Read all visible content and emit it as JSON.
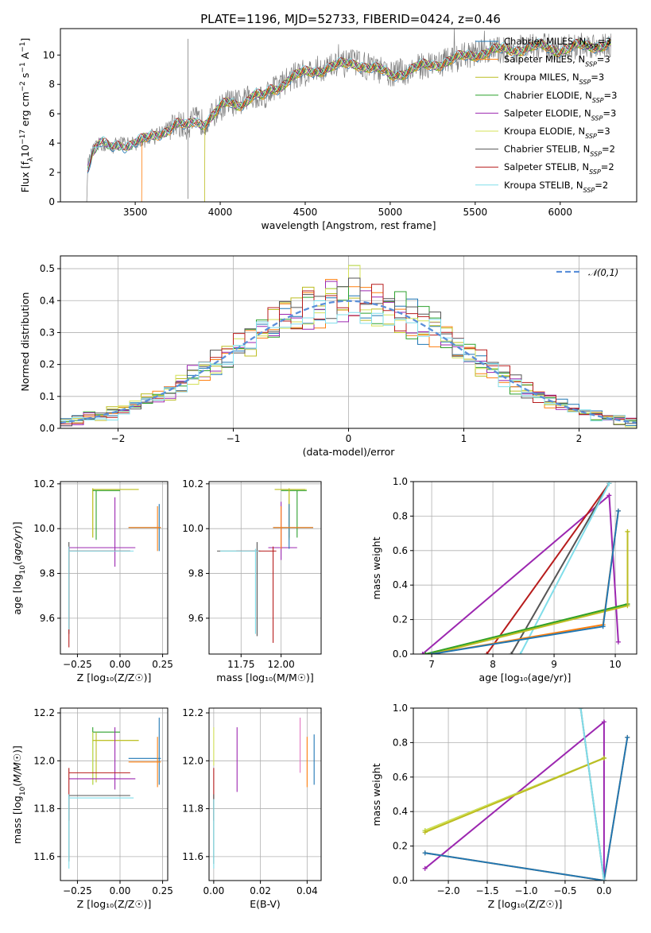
{
  "figure_title": "PLATE=1196, MJD=52733, FIBERID=0424, z=0.46",
  "colors": {
    "chabrier_miles": "#1f77b4",
    "salpeter_miles": "#ff7f0e",
    "kroupa_miles": "#bcbd22",
    "chabrier_elodie": "#2ca02c",
    "salpeter_elodie": "#9c27b0",
    "kroupa_elodie": "#d4e157",
    "chabrier_stelib": "#555555",
    "salpeter_stelib": "#b71c1c",
    "kroupa_stelib": "#80deea",
    "data": "#808080",
    "normal": "#5b8fd9"
  },
  "chart_data": [
    {
      "id": "spectrum",
      "type": "line",
      "title": "PLATE=1196, MJD=52733, FIBERID=0424, z=0.46",
      "xlabel": "wavelength [Angstrom, rest frame]",
      "ylabel": "Flux [f_λ10⁻¹⁷ erg cm⁻² s⁻¹ A⁻¹]",
      "xlim": [
        3060,
        6450
      ],
      "ylim": [
        0,
        11.8
      ],
      "xticks": [
        "3500",
        "4000",
        "4500",
        "5000",
        "5500",
        "6000"
      ],
      "yticks": [
        "0",
        "2",
        "4",
        "6",
        "8",
        "10"
      ],
      "legend_position": "top-right",
      "legend": [
        "Chabrier MILES, N_SSP=3",
        "Salpeter MILES, N_SSP=3",
        "Kroupa MILES, N_SSP=3",
        "Chabrier ELODIE, N_SSP=3",
        "Salpeter ELODIE, N_SSP=3",
        "Kroupa ELODIE, N_SSP=3",
        "Chabrier STELIB, N_SSP=2",
        "Salpeter STELIB, N_SSP=2",
        "Kroupa STELIB, N_SSP=2"
      ],
      "continuum": {
        "x": [
          3220,
          3250,
          3300,
          3350,
          3400,
          3450,
          3500,
          3550,
          3600,
          3650,
          3700,
          3750,
          3800,
          3850,
          3900,
          3950,
          4000,
          4050,
          4100,
          4150,
          4200,
          4250,
          4300,
          4350,
          4400,
          4450,
          4500,
          4600,
          4700,
          4800,
          4900,
          5000,
          5100,
          5200,
          5300,
          5400,
          5500,
          5600,
          5700,
          5800,
          5900,
          6000,
          6100,
          6200,
          6300
        ],
        "y": [
          2.4,
          3.4,
          4.0,
          3.7,
          4.0,
          3.9,
          4.0,
          4.2,
          4.5,
          4.8,
          5.0,
          5.3,
          5.1,
          5.6,
          5.4,
          5.8,
          6.4,
          6.8,
          6.7,
          6.9,
          7.3,
          7.1,
          7.7,
          7.9,
          8.4,
          8.6,
          8.8,
          9.1,
          9.3,
          9.5,
          9.1,
          8.7,
          8.9,
          9.3,
          9.5,
          9.8,
          10.1,
          10.3,
          10.4,
          10.5,
          10.6,
          10.4,
          10.6,
          10.7,
          10.8
        ]
      },
      "cutoffs": {
        "salpeter_miles": 3540,
        "kroupa_miles": 3910
      }
    },
    {
      "id": "residuals",
      "type": "histogram",
      "xlabel": "(data-model)/error",
      "ylabel": "Normed distribution",
      "xlim": [
        -2.5,
        2.5
      ],
      "ylim": [
        0,
        0.54
      ],
      "xticks": [
        "−2",
        "−1",
        "0",
        "1",
        "2"
      ],
      "yticks": [
        "0.0",
        "0.1",
        "0.2",
        "0.3",
        "0.4",
        "0.5"
      ],
      "legend": [
        "𝒩(0,1)"
      ],
      "legend_position": "top-right",
      "bin_width": 0.1
    },
    {
      "id": "age_vs_Z",
      "type": "scatter",
      "xlabel": "Z [log₁₀(Z/Z☉)]",
      "ylabel": "age  [log₁₀(age/yr)]",
      "xlim": [
        -0.35,
        0.28
      ],
      "ylim": [
        9.44,
        10.21
      ],
      "xticks": [
        "−0.25",
        "0.00",
        "0.25"
      ],
      "yticks": [
        "9.6",
        "9.8",
        "10.0",
        "10.2"
      ]
    },
    {
      "id": "age_vs_mass",
      "type": "scatter",
      "xlabel": "mass [log₁₀(M/M☉)]",
      "xlim": [
        11.55,
        12.25
      ],
      "ylim": [
        9.44,
        10.21
      ],
      "xticks": [
        "11.75",
        "12.00"
      ],
      "yticks": [
        "9.6",
        "9.8",
        "10.0",
        "10.2"
      ]
    },
    {
      "id": "weight_vs_age",
      "type": "line",
      "xlabel": "age  [log₁₀(age/yr)]",
      "ylabel": "mass weight",
      "xlim": [
        6.7,
        10.35
      ],
      "ylim": [
        0,
        1
      ],
      "xticks": [
        "7",
        "8",
        "9",
        "10"
      ],
      "yticks": [
        "0.0",
        "0.2",
        "0.4",
        "0.6",
        "0.8",
        "1.0"
      ]
    },
    {
      "id": "mass_vs_Z",
      "type": "scatter",
      "xlabel": "Z [log₁₀(Z/Z☉)]",
      "ylabel": "mass [log₁₀(M/M☉)]",
      "xlim": [
        -0.35,
        0.28
      ],
      "ylim": [
        11.5,
        12.22
      ],
      "xticks": [
        "−0.25",
        "0.00",
        "0.25"
      ],
      "yticks": [
        "11.6",
        "11.8",
        "12.0",
        "12.2"
      ]
    },
    {
      "id": "mass_vs_ebv",
      "type": "scatter",
      "xlabel": "E(B-V)",
      "xlim": [
        -0.002,
        0.046
      ],
      "ylim": [
        11.5,
        12.22
      ],
      "xticks": [
        "0.00",
        "0.02",
        "0.04"
      ],
      "yticks": [
        "11.6",
        "11.8",
        "12.0",
        "12.2"
      ]
    },
    {
      "id": "weight_vs_Z",
      "type": "line",
      "xlabel": "Z [log₁₀(Z/Z☉)]",
      "ylabel": "mass weight",
      "xlim": [
        -2.45,
        0.42
      ],
      "ylim": [
        0,
        1
      ],
      "xticks": [
        "−2.0",
        "−1.5",
        "−1.0",
        "−0.5",
        "0.0"
      ],
      "yticks": [
        "0.0",
        "0.2",
        "0.4",
        "0.6",
        "0.8",
        "1.0"
      ]
    }
  ]
}
